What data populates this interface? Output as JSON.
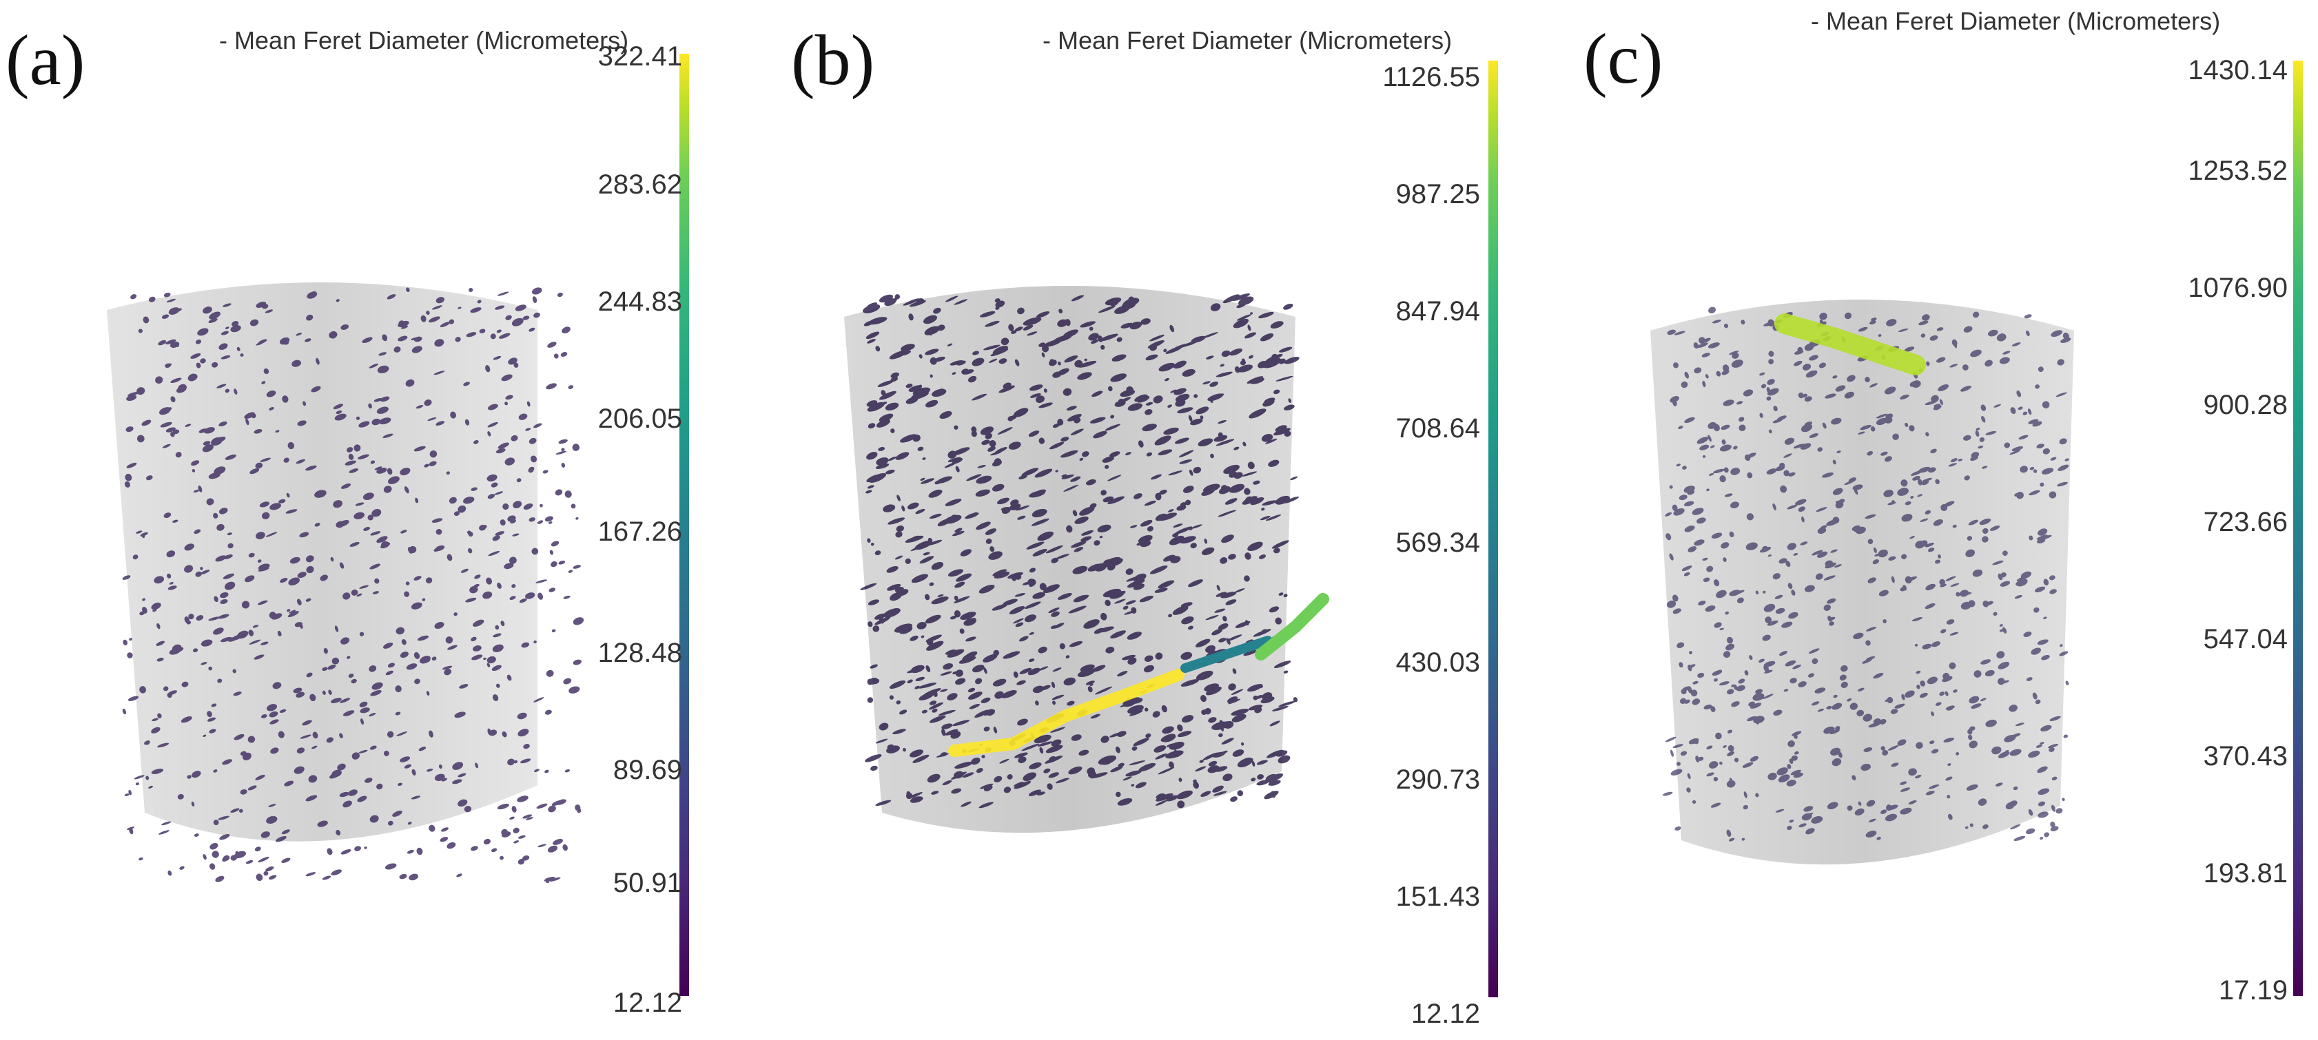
{
  "panels": [
    {
      "label": "(a)",
      "legend_title": "- Mean Feret Diameter (Micrometers)",
      "colorbar_ticks": [
        "322.41",
        "283.62",
        "244.83",
        "206.05",
        "167.26",
        "128.48",
        "89.69",
        "50.91",
        "12.12"
      ]
    },
    {
      "label": "(b)",
      "legend_title": "- Mean Feret Diameter (Micrometers)",
      "colorbar_ticks": [
        "1126.55",
        "987.25",
        "847.94",
        "708.64",
        "569.34",
        "430.03",
        "290.73",
        "151.43",
        "12.12"
      ]
    },
    {
      "label": "(c)",
      "legend_title": "- Mean Feret Diameter (Micrometers)",
      "colorbar_ticks": [
        "1430.14",
        "1253.52",
        "1076.90",
        "900.28",
        "723.66",
        "547.04",
        "370.43",
        "193.81",
        "17.19"
      ]
    }
  ],
  "colormap": [
    "#440154",
    "#3e4a89",
    "#26828e",
    "#35b779",
    "#b5de2b",
    "#fde725"
  ]
}
